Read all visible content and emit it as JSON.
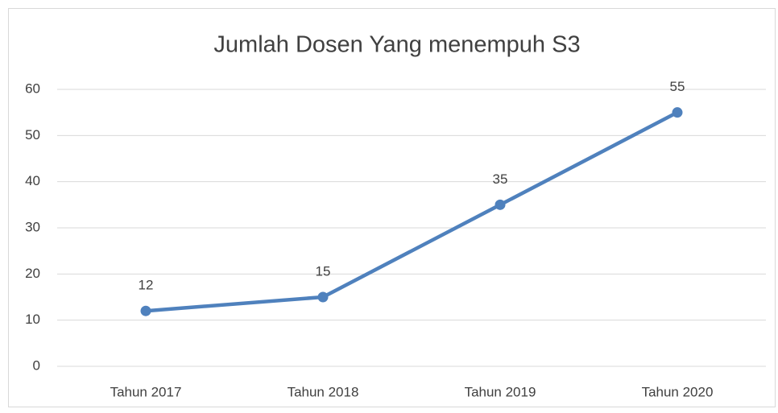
{
  "chart_data": {
    "type": "line",
    "title": "Jumlah Dosen Yang menempuh S3",
    "categories": [
      "Tahun 2017",
      "Tahun 2018",
      "Tahun 2019",
      "Tahun 2020"
    ],
    "series": [
      {
        "name": "Jumlah Dosen",
        "color": "#4f81bd",
        "values": [
          12,
          15,
          35,
          55
        ]
      }
    ],
    "ylim": [
      0,
      60
    ],
    "yticks": [
      0,
      10,
      20,
      30,
      40,
      50,
      60
    ],
    "grid": true,
    "data_labels": true
  }
}
